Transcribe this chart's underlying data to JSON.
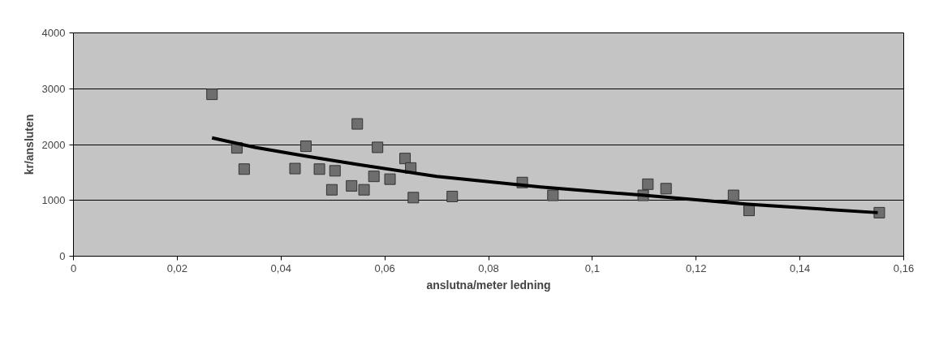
{
  "chart_data": {
    "type": "scatter",
    "xlabel": "anslutna/meter ledning",
    "ylabel": "kr/ansluten",
    "xlim": [
      0,
      0.16
    ],
    "ylim": [
      0,
      4000
    ],
    "xticks": [
      0,
      {
        "value": 0.02,
        "label": "0,02"
      },
      {
        "value": 0.04,
        "label": "0,04"
      },
      {
        "value": 0.06,
        "label": "0,06"
      },
      {
        "value": 0.08,
        "label": "0,08"
      },
      {
        "value": 0.1,
        "label": "0,1"
      },
      {
        "value": 0.12,
        "label": "0,12"
      },
      {
        "value": 0.14,
        "label": "0,14"
      },
      {
        "value": 0.16,
        "label": "0,16"
      }
    ],
    "yticks": [
      0,
      1000,
      2000,
      3000,
      4000
    ],
    "grid": "y",
    "series": [
      {
        "color": "#6e6e6e",
        "marker": "square",
        "x": [
          0.0267,
          0.0315,
          0.0329,
          0.0427,
          0.0448,
          0.0474,
          0.0498,
          0.0504,
          0.0536,
          0.0547,
          0.056,
          0.0579,
          0.0586,
          0.061,
          0.0639,
          0.065,
          0.0655,
          0.073,
          0.0865,
          0.0924,
          0.1098,
          0.1107,
          0.1142,
          0.1272,
          0.1302,
          0.1553
        ],
        "values": [
          2900,
          1940,
          1560,
          1570,
          1970,
          1560,
          1190,
          1530,
          1260,
          2370,
          1190,
          1430,
          1950,
          1380,
          1750,
          1580,
          1050,
          1070,
          1320,
          1090,
          1090,
          1290,
          1210,
          1090,
          820,
          780
        ]
      },
      {
        "type": "line",
        "color": "#000000",
        "marker": "none",
        "x": [
          0.0267,
          0.035,
          0.045,
          0.055,
          0.07,
          0.09,
          0.11,
          0.13,
          0.155
        ],
        "values": [
          2120,
          1950,
          1790,
          1640,
          1430,
          1240,
          1090,
          930,
          780
        ]
      }
    ]
  }
}
